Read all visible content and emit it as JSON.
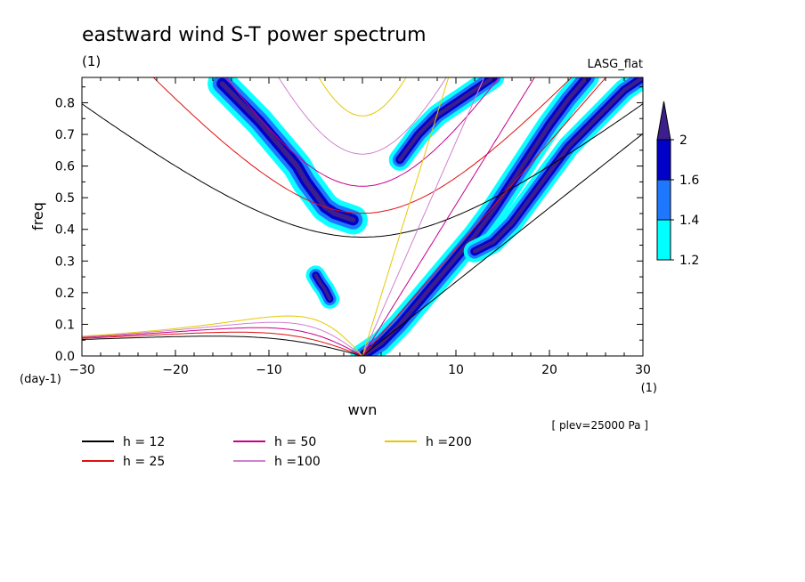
{
  "chart_data": {
    "type": "contour",
    "title": "eastward wind S-T power spectrum",
    "subtitle_left": "(1)",
    "subtitle_right": "LASG_flat",
    "xlabel": "wvn",
    "ylabel": "freq",
    "x_unit": "(1)",
    "y_unit": "(day-1)",
    "annotation": "[ plev=25000 Pa ]",
    "xlim": [
      -30,
      30
    ],
    "ylim": [
      0.0,
      0.88
    ],
    "x_ticks": [
      -30,
      -20,
      -10,
      0,
      10,
      20,
      30
    ],
    "x_tick_labels": [
      "−30",
      "−20",
      "−10",
      "0",
      "10",
      "20",
      "30"
    ],
    "y_ticks": [
      0.0,
      0.1,
      0.2,
      0.3,
      0.4,
      0.5,
      0.6,
      0.7,
      0.8
    ],
    "y_tick_labels": [
      "0.0",
      "0.1",
      "0.2",
      "0.3",
      "0.4",
      "0.5",
      "0.6",
      "0.7",
      "0.8"
    ],
    "colorbar": {
      "levels": [
        1.2,
        1.4,
        1.6,
        2
      ],
      "labels": [
        "1.2",
        "1.4",
        "1.6",
        "2"
      ],
      "colors": [
        "#00ffff",
        "#1e78ff",
        "#0000c8",
        "#3c1e8c"
      ]
    },
    "series": [
      {
        "name": "h = 12",
        "color": "#000000",
        "h": 12
      },
      {
        "name": "h = 25",
        "color": "#e01010",
        "h": 25
      },
      {
        "name": "h = 50",
        "color": "#c8008c",
        "h": 50
      },
      {
        "name": "h =100",
        "color": "#d080d0",
        "h": 100
      },
      {
        "name": "h =200",
        "color": "#e6c800",
        "h": 200
      }
    ],
    "spectral_bands": [
      {
        "name": "band-n1-inertia-gravity-west",
        "points": [
          [
            -15,
            0.86
          ],
          [
            -13,
            0.8
          ],
          [
            -11,
            0.74
          ],
          [
            -9,
            0.67
          ],
          [
            -7,
            0.6
          ],
          [
            -6,
            0.55
          ],
          [
            -5,
            0.51
          ],
          [
            -4,
            0.47
          ],
          [
            -3,
            0.45
          ],
          [
            -2,
            0.44
          ],
          [
            -1,
            0.43
          ]
        ],
        "width": 1.2
      },
      {
        "name": "band-rossby-like",
        "points": [
          [
            -5,
            0.255
          ],
          [
            -4.5,
            0.23
          ],
          [
            -4,
            0.21
          ],
          [
            -3.5,
            0.18
          ]
        ],
        "width": 0.8
      },
      {
        "name": "band-kelvin",
        "points": [
          [
            0,
            0.0
          ],
          [
            2,
            0.04
          ],
          [
            4,
            0.1
          ],
          [
            6,
            0.17
          ],
          [
            8,
            0.24
          ],
          [
            10,
            0.31
          ],
          [
            12,
            0.38
          ],
          [
            14,
            0.46
          ],
          [
            16,
            0.55
          ],
          [
            18,
            0.64
          ],
          [
            20,
            0.73
          ],
          [
            22,
            0.81
          ],
          [
            24,
            0.88
          ]
        ],
        "width": 1.0
      },
      {
        "name": "band-kelvin-upper",
        "points": [
          [
            4,
            0.62
          ],
          [
            6,
            0.7
          ],
          [
            8,
            0.76
          ],
          [
            10,
            0.8
          ],
          [
            12,
            0.84
          ],
          [
            14,
            0.88
          ]
        ],
        "width": 0.9
      },
      {
        "name": "band-kelvin-lower",
        "points": [
          [
            12,
            0.33
          ],
          [
            14,
            0.36
          ],
          [
            16,
            0.42
          ],
          [
            18,
            0.5
          ],
          [
            20,
            0.58
          ],
          [
            22,
            0.66
          ],
          [
            24,
            0.72
          ],
          [
            26,
            0.78
          ],
          [
            28,
            0.84
          ],
          [
            30,
            0.88
          ]
        ],
        "width": 0.9
      }
    ]
  }
}
